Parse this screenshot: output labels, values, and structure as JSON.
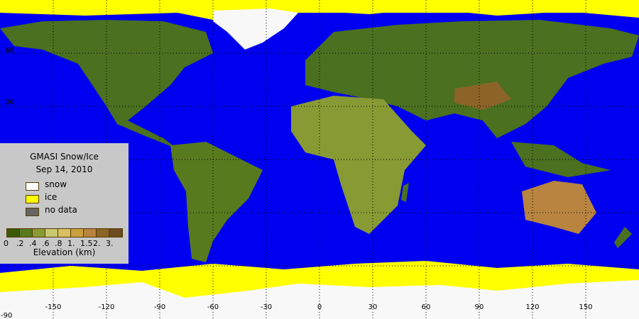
{
  "legend": {
    "title": "GMASI Snow/Ice",
    "date": "Sep 14, 2010",
    "items": [
      {
        "label": "snow",
        "color": "#ffffff"
      },
      {
        "label": "ice",
        "color": "#ffff00"
      },
      {
        "label": "no data",
        "color": "#646464"
      }
    ],
    "elevation_colors": [
      "#3a5a0a",
      "#587a1e",
      "#889a34",
      "#c8c870",
      "#d8c060",
      "#c8a040",
      "#b88440",
      "#8c6428",
      "#6c4c20"
    ],
    "elevation_ticks": [
      "0",
      ".2",
      ".4",
      ".6",
      ".8",
      "1.",
      "1.5",
      "2.",
      "3."
    ],
    "elevation_label": "Elevation (km)"
  },
  "axes": {
    "longitude_labels": [
      "-150",
      "-120",
      "-90",
      "-60",
      "-30",
      "0",
      "30",
      "60",
      "90",
      "120",
      "150"
    ],
    "latitude_labels": [
      "60",
      "30",
      "-90"
    ]
  },
  "colors": {
    "ocean": "#0000f0",
    "ice": "#ffff00",
    "snow": "#f8f8f8",
    "land": "#4a7020"
  }
}
